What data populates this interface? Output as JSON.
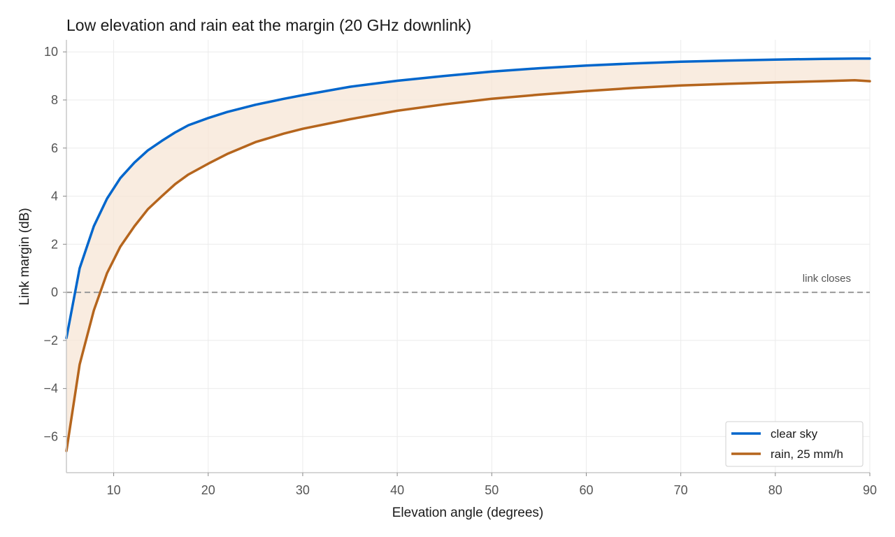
{
  "chart_data": {
    "type": "line",
    "title": "Low elevation and rain eat the margin (20 GHz downlink)",
    "xlabel": "Elevation angle (degrees)",
    "ylabel": "Link margin (dB)",
    "xlim": [
      5,
      90
    ],
    "ylim": [
      -7.5,
      10.5
    ],
    "xticks": [
      10,
      20,
      30,
      40,
      50,
      60,
      70,
      80,
      90
    ],
    "xtick_labels": [
      "10",
      "20",
      "30",
      "40",
      "50",
      "60",
      "70",
      "80",
      "90"
    ],
    "yticks": [
      -6,
      -4,
      -2,
      0,
      2,
      4,
      6,
      8,
      10
    ],
    "ytick_labels": [
      "−6",
      "−4",
      "−2",
      "0",
      "2",
      "4",
      "6",
      "8",
      "10"
    ],
    "grid": true,
    "legend_position": "bottom-right",
    "x": [
      5,
      6.4,
      7.9,
      9.3,
      10.7,
      12.2,
      13.6,
      15.1,
      16.5,
      17.9,
      20,
      22,
      25,
      28,
      30,
      35,
      40,
      45,
      50,
      55,
      60,
      65,
      70,
      75,
      80,
      85,
      88.4,
      90
    ],
    "series": [
      {
        "name": "clear sky",
        "color": "#0066cc",
        "values": [
          -1.9,
          1.0,
          2.75,
          3.9,
          4.75,
          5.4,
          5.9,
          6.3,
          6.65,
          6.95,
          7.25,
          7.5,
          7.8,
          8.05,
          8.2,
          8.55,
          8.8,
          9.0,
          9.18,
          9.32,
          9.43,
          9.52,
          9.59,
          9.64,
          9.68,
          9.71,
          9.72,
          9.72
        ]
      },
      {
        "name": "rain, 25 mm/h",
        "color": "#b5651d",
        "values": [
          -6.6,
          -3.0,
          -0.75,
          0.8,
          1.9,
          2.75,
          3.45,
          4.0,
          4.5,
          4.9,
          5.35,
          5.75,
          6.25,
          6.6,
          6.8,
          7.2,
          7.55,
          7.82,
          8.05,
          8.22,
          8.37,
          8.5,
          8.6,
          8.67,
          8.73,
          8.78,
          8.82,
          8.78
        ]
      }
    ],
    "fill_between": {
      "color": "#f7e6d6"
    },
    "reference_line": {
      "y": 0,
      "label": "link closes",
      "color": "#999999"
    }
  }
}
